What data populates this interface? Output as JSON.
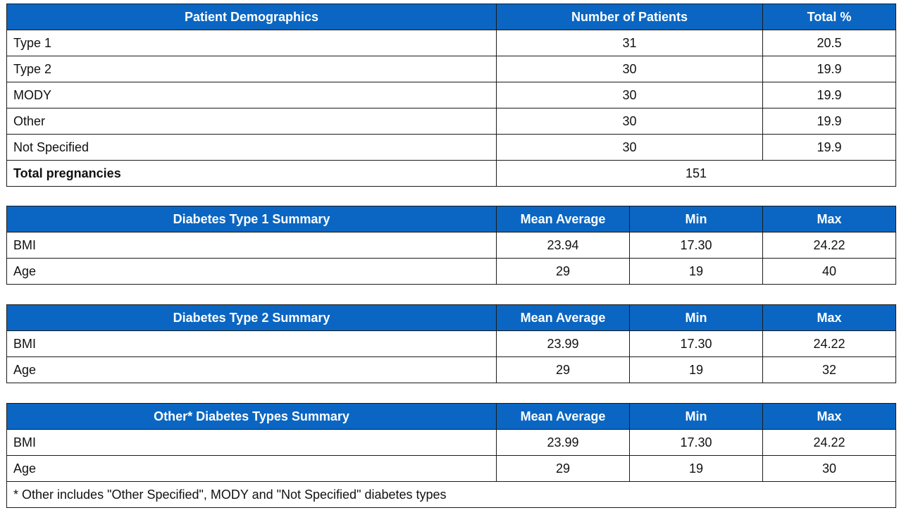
{
  "demographics": {
    "headers": [
      "Patient Demographics",
      "Number of Patients",
      "Total %"
    ],
    "rows": [
      {
        "label": "Type 1",
        "patients": "31",
        "pct": "20.5"
      },
      {
        "label": "Type 2",
        "patients": "30",
        "pct": "19.9"
      },
      {
        "label": "MODY",
        "patients": "30",
        "pct": "19.9"
      },
      {
        "label": "Other",
        "patients": "30",
        "pct": "19.9"
      },
      {
        "label": "Not Specified",
        "patients": "30",
        "pct": "19.9"
      }
    ],
    "total": {
      "label": "Total pregnancies",
      "value": "151"
    }
  },
  "type1": {
    "headers": [
      "Diabetes Type 1 Summary",
      "Mean Average",
      "Min",
      "Max"
    ],
    "rows": [
      {
        "label": "BMI",
        "mean": "23.94",
        "min": "17.30",
        "max": "24.22"
      },
      {
        "label": "Age",
        "mean": "29",
        "min": "19",
        "max": "40"
      }
    ]
  },
  "type2": {
    "headers": [
      "Diabetes Type 2 Summary",
      "Mean Average",
      "Min",
      "Max"
    ],
    "rows": [
      {
        "label": "BMI",
        "mean": "23.99",
        "min": "17.30",
        "max": "24.22"
      },
      {
        "label": "Age",
        "mean": "29",
        "min": "19",
        "max": "32"
      }
    ]
  },
  "other": {
    "headers": [
      "Other* Diabetes Types Summary",
      "Mean Average",
      "Min",
      "Max"
    ],
    "rows": [
      {
        "label": "BMI",
        "mean": "23.99",
        "min": "17.30",
        "max": "24.22"
      },
      {
        "label": "Age",
        "mean": "29",
        "min": "19",
        "max": "30"
      }
    ],
    "footnote": "* Other includes \"Other Specified\", MODY and \"Not Specified\" diabetes types"
  }
}
